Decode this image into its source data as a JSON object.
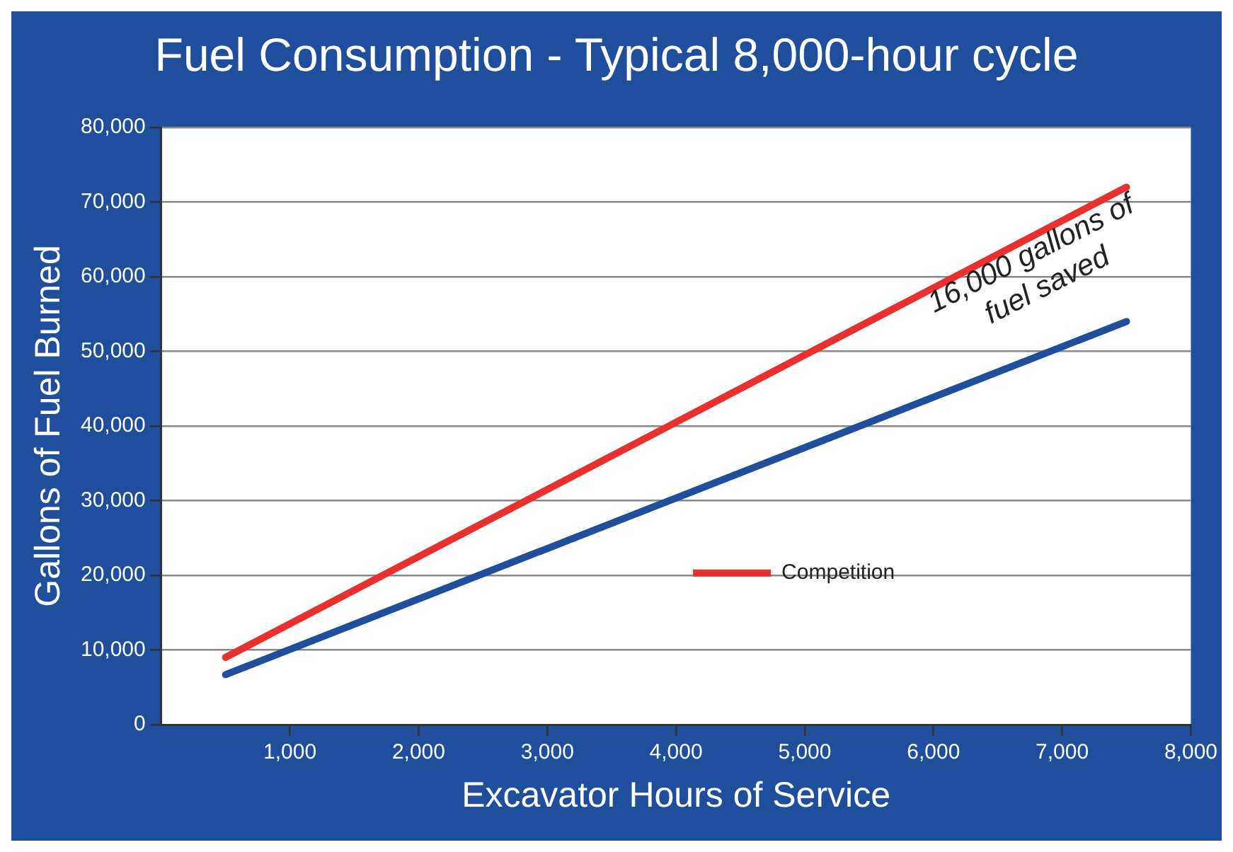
{
  "chart_data": {
    "type": "line",
    "title": "Fuel Consumption - Typical 8,000-hour cycle",
    "xlabel": "Excavator Hours of Service",
    "ylabel": "Gallons of Fuel Burned",
    "x": [
      500,
      7500
    ],
    "series": [
      {
        "name": "Competition",
        "color": "#e8312f",
        "values": [
          9000,
          72000
        ]
      },
      {
        "color": "#1f4e9c",
        "values": [
          6700,
          54000
        ]
      }
    ],
    "xlim": [
      0,
      8000
    ],
    "xticks": [
      {
        "value": 1000,
        "label": "1,000"
      },
      {
        "value": 2000,
        "label": "2,000"
      },
      {
        "value": 3000,
        "label": "3,000"
      },
      {
        "value": 4000,
        "label": "4,000"
      },
      {
        "value": 5000,
        "label": "5,000"
      },
      {
        "value": 6000,
        "label": "6,000"
      },
      {
        "value": 7000,
        "label": "7,000"
      },
      {
        "value": 8000,
        "label": "8,000"
      }
    ],
    "ylim": [
      0,
      80000
    ],
    "yticks": [
      0,
      {
        "value": 10000,
        "label": "10,000"
      },
      {
        "value": 20000,
        "label": "20,000"
      },
      {
        "value": 30000,
        "label": "30,000"
      },
      {
        "value": 40000,
        "label": "40,000"
      },
      {
        "value": 50000,
        "label": "50,000"
      },
      {
        "value": 60000,
        "label": "60,000"
      },
      {
        "value": 70000,
        "label": "70,000"
      },
      {
        "value": 80000,
        "label": "80,000"
      }
    ],
    "grid": "y",
    "legend": "bottom right",
    "marker": "none",
    "line_style": "solid",
    "annotations": [
      "16,000 gallons of fuel saved"
    ]
  }
}
